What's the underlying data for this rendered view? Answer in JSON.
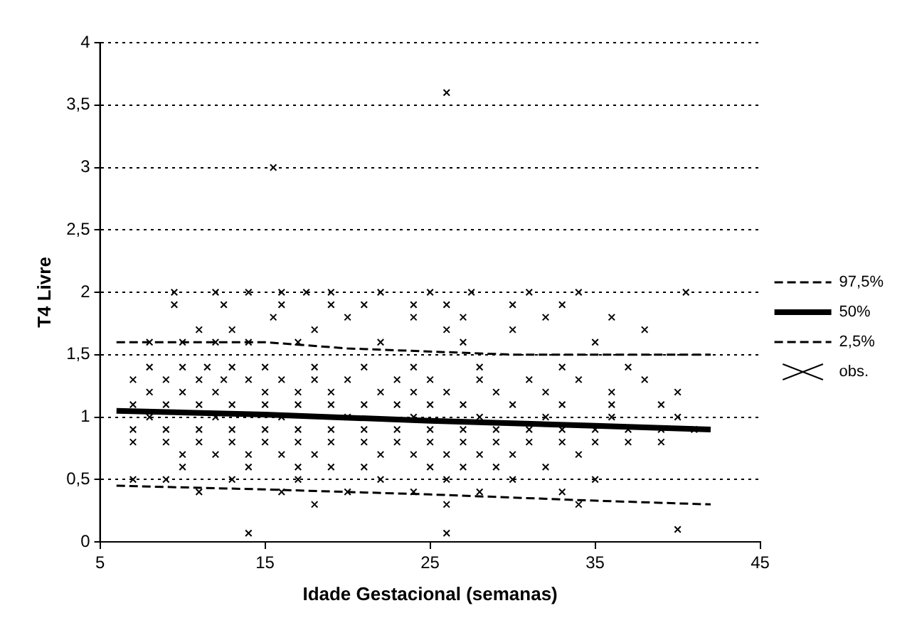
{
  "chart_data": {
    "type": "scatter",
    "xlabel": "Idade Gestacional (semanas)",
    "ylabel": "T4 Livre",
    "xlim": [
      5,
      45
    ],
    "xticks": [
      5,
      15,
      25,
      35,
      45
    ],
    "ylim": [
      0,
      4
    ],
    "yticks": [
      0,
      {
        "value": 0.5,
        "label": "0,5"
      },
      1,
      {
        "value": 1.5,
        "label": "1,5"
      },
      2,
      {
        "value": 2.5,
        "label": "2,5"
      },
      3,
      {
        "value": 3.5,
        "label": "3,5"
      },
      4
    ],
    "grid": "y",
    "legend": "right",
    "series": [
      {
        "name": "97,5%",
        "type": "line",
        "line_style": "dashed",
        "color": "#000000",
        "x": [
          6,
          15,
          20,
          30,
          42
        ],
        "values": [
          1.6,
          1.6,
          1.55,
          1.5,
          1.5
        ]
      },
      {
        "name": "50%",
        "type": "line",
        "line_style": "solid",
        "color": "#000000",
        "x": [
          6,
          15,
          25,
          35,
          42
        ],
        "values": [
          1.05,
          1.02,
          0.97,
          0.93,
          0.9
        ]
      },
      {
        "name": "2,5%",
        "type": "line",
        "line_style": "dashed",
        "color": "#000000",
        "x": [
          6,
          15,
          25,
          35,
          42
        ],
        "values": [
          0.45,
          0.42,
          0.38,
          0.33,
          0.3
        ]
      },
      {
        "name": "obs.",
        "type": "scatter",
        "marker": "cross",
        "color": "#000000",
        "x": [
          9.5,
          12,
          14,
          16,
          17.5,
          19,
          22,
          25,
          27.5,
          31,
          34,
          40.5,
          9.5,
          12.5,
          16,
          19,
          21,
          24,
          26,
          30,
          33,
          15.5,
          20,
          24,
          27,
          32,
          36,
          11,
          13,
          18,
          26,
          30,
          38,
          8,
          10,
          12,
          14,
          17,
          22,
          27,
          35,
          8,
          10,
          11.5,
          13,
          15,
          18,
          21,
          24,
          28,
          33,
          37,
          7,
          9,
          11,
          12.5,
          14,
          16,
          18,
          20,
          23,
          25,
          28,
          31,
          34,
          38,
          8,
          10,
          12,
          15,
          17,
          19,
          22,
          24,
          26,
          29,
          32,
          36,
          40,
          7,
          9,
          11,
          13,
          15,
          17,
          19,
          21,
          23,
          25,
          27,
          30,
          33,
          36,
          39,
          8,
          12,
          16,
          20,
          24,
          28,
          32,
          36,
          40,
          7,
          9,
          11,
          13,
          15,
          17,
          19,
          21,
          23,
          25,
          27,
          29,
          31,
          33,
          35,
          37,
          39,
          41,
          7,
          9,
          11,
          13,
          15,
          17,
          19,
          21,
          23,
          25,
          27,
          29,
          31,
          33,
          35,
          37,
          39,
          10,
          12,
          14,
          16,
          18,
          22,
          24,
          26,
          28,
          30,
          34,
          10,
          14,
          17,
          19,
          21,
          25,
          27,
          29,
          32,
          7,
          9,
          13,
          17,
          22,
          26,
          30,
          35,
          11,
          16,
          20,
          24,
          28,
          33,
          18,
          26,
          34,
          26,
          15.5,
          14,
          26,
          40
        ],
        "values": [
          2,
          2,
          2,
          2,
          2,
          2,
          2,
          2,
          2,
          2,
          2,
          2,
          1.9,
          1.9,
          1.9,
          1.9,
          1.9,
          1.9,
          1.9,
          1.9,
          1.9,
          1.8,
          1.8,
          1.8,
          1.8,
          1.8,
          1.8,
          1.7,
          1.7,
          1.7,
          1.7,
          1.7,
          1.7,
          1.6,
          1.6,
          1.6,
          1.6,
          1.6,
          1.6,
          1.6,
          1.6,
          1.4,
          1.4,
          1.4,
          1.4,
          1.4,
          1.4,
          1.4,
          1.4,
          1.4,
          1.4,
          1.4,
          1.3,
          1.3,
          1.3,
          1.3,
          1.3,
          1.3,
          1.3,
          1.3,
          1.3,
          1.3,
          1.3,
          1.3,
          1.3,
          1.3,
          1.2,
          1.2,
          1.2,
          1.2,
          1.2,
          1.2,
          1.2,
          1.2,
          1.2,
          1.2,
          1.2,
          1.2,
          1.2,
          1.1,
          1.1,
          1.1,
          1.1,
          1.1,
          1.1,
          1.1,
          1.1,
          1.1,
          1.1,
          1.1,
          1.1,
          1.1,
          1.1,
          1.1,
          1,
          1,
          1,
          1,
          1,
          1,
          1,
          1,
          1,
          0.9,
          0.9,
          0.9,
          0.9,
          0.9,
          0.9,
          0.9,
          0.9,
          0.9,
          0.9,
          0.9,
          0.9,
          0.9,
          0.9,
          0.9,
          0.9,
          0.9,
          0.9,
          0.8,
          0.8,
          0.8,
          0.8,
          0.8,
          0.8,
          0.8,
          0.8,
          0.8,
          0.8,
          0.8,
          0.8,
          0.8,
          0.8,
          0.8,
          0.8,
          0.8,
          0.7,
          0.7,
          0.7,
          0.7,
          0.7,
          0.7,
          0.7,
          0.7,
          0.7,
          0.7,
          0.7,
          0.6,
          0.6,
          0.6,
          0.6,
          0.6,
          0.6,
          0.6,
          0.6,
          0.6,
          0.5,
          0.5,
          0.5,
          0.5,
          0.5,
          0.5,
          0.5,
          0.5,
          0.4,
          0.4,
          0.4,
          0.4,
          0.4,
          0.4,
          0.3,
          0.3,
          0.3,
          3.6,
          3,
          0.07,
          0.07,
          0.1
        ]
      }
    ]
  }
}
